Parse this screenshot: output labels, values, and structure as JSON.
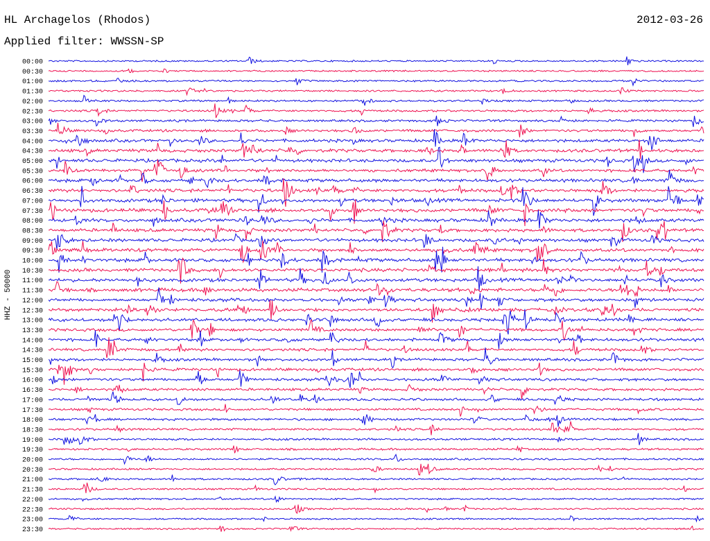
{
  "header": {
    "station": "HL Archagelos (Rhodos)",
    "date": "2012-03-26",
    "filter": "Applied filter: WWSSN-SP"
  },
  "axis": {
    "channel_label": "HHZ - 50000"
  },
  "colors": {
    "blue": "#1010e0",
    "red": "#ee1050"
  },
  "time_labels": [
    "00:00",
    "00:30",
    "01:00",
    "01:30",
    "02:00",
    "02:30",
    "03:00",
    "03:30",
    "04:00",
    "04:30",
    "05:00",
    "05:30",
    "06:00",
    "06:30",
    "07:00",
    "07:30",
    "08:00",
    "08:30",
    "09:00",
    "09:30",
    "10:00",
    "10:30",
    "11:00",
    "11:30",
    "12:00",
    "12:30",
    "13:00",
    "13:30",
    "14:00",
    "14:30",
    "15:00",
    "15:30",
    "16:00",
    "16:30",
    "17:00",
    "17:30",
    "18:00",
    "18:30",
    "19:00",
    "19:30",
    "20:00",
    "20:30",
    "21:00",
    "21:30",
    "22:00",
    "22:30",
    "23:00",
    "23:30"
  ],
  "trace_activity": [
    0.2,
    0.2,
    0.3,
    0.3,
    0.35,
    0.4,
    0.5,
    0.6,
    0.8,
    0.9,
    0.9,
    0.8,
    0.9,
    0.9,
    1.0,
    1.0,
    1.0,
    0.9,
    0.9,
    1.0,
    1.0,
    1.0,
    1.0,
    1.0,
    0.9,
    0.9,
    0.9,
    0.8,
    0.8,
    0.7,
    0.7,
    0.7,
    0.7,
    0.6,
    0.6,
    0.5,
    0.5,
    0.45,
    0.4,
    0.4,
    0.35,
    0.3,
    0.3,
    0.3,
    0.25,
    0.25,
    0.2,
    0.2
  ]
}
